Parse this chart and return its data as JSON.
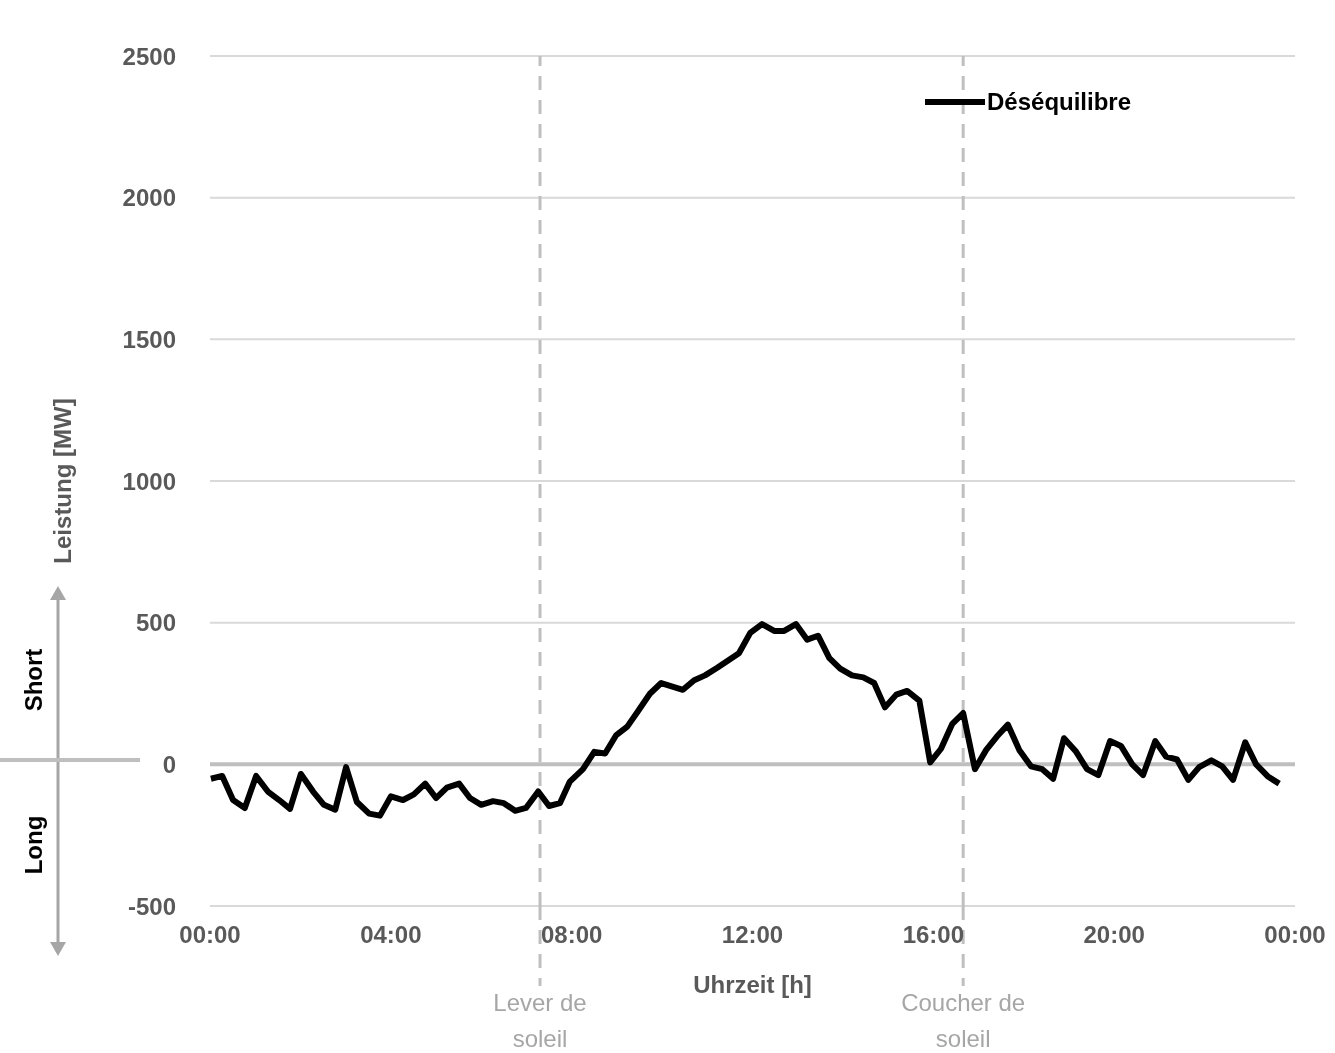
{
  "chart_data": {
    "type": "line",
    "xlabel": "Uhrzeit [h]",
    "ylabel": "Leistung [MW]",
    "x": [
      0.02,
      0.27,
      0.51,
      0.77,
      1.02,
      1.28,
      1.53,
      1.77,
      2.01,
      2.28,
      2.52,
      2.77,
      3.01,
      3.25,
      3.52,
      3.76,
      4.0,
      4.27,
      4.51,
      4.76,
      5.0,
      5.24,
      5.51,
      5.75,
      6.0,
      6.26,
      6.5,
      6.75,
      6.99,
      7.26,
      7.5,
      7.74,
      7.96,
      8.25,
      8.5,
      8.74,
      8.98,
      9.23,
      9.47,
      9.73,
      9.98,
      10.46,
      10.71,
      10.95,
      11.22,
      11.7,
      11.95,
      12.21,
      12.48,
      12.7,
      12.96,
      13.21,
      13.45,
      13.7,
      13.94,
      14.2,
      14.45,
      14.69,
      14.93,
      15.18,
      15.42,
      15.69,
      15.93,
      16.17,
      16.42,
      16.66,
      16.92,
      17.17,
      17.41,
      17.65,
      17.9,
      18.16,
      18.41,
      18.65,
      18.89,
      19.16,
      19.4,
      19.65,
      19.91,
      20.15,
      20.4,
      20.64,
      20.91,
      21.15,
      21.39,
      21.64,
      21.88,
      22.15,
      22.39,
      22.63,
      22.9,
      23.14,
      23.41,
      23.65
    ],
    "series": [
      {
        "name": "Déséquilibre",
        "color": "#000000",
        "values": [
          -51,
          -41,
          -126,
          -154,
          -41,
          -96,
          -126,
          -157,
          -34,
          -96,
          -143,
          -160,
          -10,
          -133,
          -174,
          -181,
          -113,
          -126,
          -106,
          -68,
          -119,
          -82,
          -68,
          -119,
          -143,
          -130,
          -137,
          -164,
          -154,
          -96,
          -147,
          -137,
          -61,
          -17,
          44,
          38,
          102,
          133,
          188,
          249,
          287,
          263,
          297,
          314,
          341,
          392,
          464,
          495,
          471,
          471,
          495,
          440,
          454,
          375,
          338,
          314,
          307,
          287,
          201,
          246,
          259,
          225,
          7,
          55,
          143,
          181,
          -17,
          51,
          99,
          140,
          51,
          -7,
          -17,
          -51,
          92,
          44,
          -17,
          -38,
          82,
          65,
          0,
          -38,
          82,
          27,
          17,
          -55,
          -10,
          14,
          -7,
          -55,
          78,
          0,
          -44,
          -68
        ]
      }
    ],
    "xlim": [
      0,
      24
    ],
    "xticks": [
      {
        "value": 0,
        "label": "00:00"
      },
      {
        "value": 4,
        "label": "04:00"
      },
      {
        "value": 8,
        "label": "08:00"
      },
      {
        "value": 12,
        "label": "12:00"
      },
      {
        "value": 16,
        "label": "16:00"
      },
      {
        "value": 20,
        "label": "20:00"
      },
      {
        "value": 24,
        "label": "00:00"
      }
    ],
    "ylim": [
      -500,
      2500
    ],
    "yticks": [
      -500,
      0,
      500,
      1000,
      1500,
      2000,
      2500
    ],
    "grid": "y",
    "legend": "top right",
    "marker": "none",
    "line_style": "solid",
    "ref_lines": [
      {
        "axis": "y",
        "value": 0,
        "color": "#bfbfbf",
        "line_style": "solid"
      },
      {
        "axis": "x",
        "value": 7.3,
        "label": "Lever de soleil",
        "color": "#bfbfbf",
        "line_style": "dashed"
      },
      {
        "axis": "x",
        "value": 16.66,
        "label": "Coucher de soleil",
        "color": "#bfbfbf",
        "line_style": "dashed"
      }
    ],
    "annotations": [
      "Short",
      "Long"
    ]
  }
}
